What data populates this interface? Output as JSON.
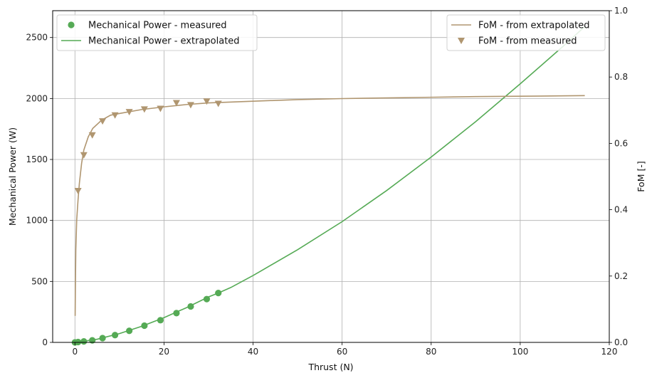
{
  "chart_data": {
    "type": "line",
    "xlabel": "Thrust (N)",
    "ylabel": "Mechanical Power (W)",
    "y2label": "FoM [-]",
    "xlim": [
      -5,
      120
    ],
    "ylim": [
      0,
      2720
    ],
    "y2lim": [
      0,
      1.0
    ],
    "xticks": [
      0,
      20,
      40,
      60,
      80,
      100,
      120
    ],
    "yticks": [
      0,
      500,
      1000,
      1500,
      2000,
      2500
    ],
    "y2ticks": [
      0.0,
      0.2,
      0.4,
      0.6,
      0.8,
      1.0
    ],
    "y2tick_labels": [
      "0.0",
      "0.2",
      "0.4",
      "0.6",
      "0.8",
      "1.0"
    ],
    "grid": true,
    "colors": {
      "power": "#55aa55",
      "fom": "#b09670"
    },
    "power_measured": {
      "name": "Mechanical Power - measured",
      "axis": "left",
      "marker": "circle",
      "x": [
        0.0,
        0.7,
        2.0,
        3.9,
        6.2,
        9.0,
        12.2,
        15.6,
        19.2,
        22.8,
        26.0,
        29.6,
        32.2
      ],
      "y": [
        0,
        3,
        8,
        17,
        35,
        60,
        95,
        137,
        182,
        240,
        295,
        355,
        405
      ]
    },
    "power_extrapolated": {
      "name": "Mechanical Power - extrapolated",
      "axis": "left",
      "x": [
        0,
        5,
        10,
        15,
        20,
        25,
        30,
        32.2,
        35,
        40,
        50,
        60,
        70,
        80,
        90,
        100,
        110,
        114.5
      ],
      "y": [
        0,
        26,
        72,
        132,
        203,
        284,
        373,
        405,
        450,
        548,
        760,
        990,
        1245,
        1520,
        1810,
        2120,
        2440,
        2590
      ]
    },
    "fom_extrapolated": {
      "name": "FoM - from extrapolated",
      "axis": "right",
      "x": [
        0.05,
        0.1,
        0.2,
        0.4,
        0.7,
        1.0,
        1.5,
        2.0,
        3.0,
        4.0,
        6.0,
        8.0,
        10.0,
        15.0,
        20.0,
        25.0,
        30.0,
        40.0,
        50.0,
        60.0,
        70.0,
        80.0,
        90.0,
        100.0,
        114.5
      ],
      "y": [
        0.08,
        0.16,
        0.28,
        0.37,
        0.43,
        0.48,
        0.54,
        0.58,
        0.62,
        0.645,
        0.67,
        0.685,
        0.69,
        0.702,
        0.71,
        0.717,
        0.722,
        0.727,
        0.732,
        0.735,
        0.737,
        0.739,
        0.741,
        0.742,
        0.744
      ]
    },
    "fom_measured": {
      "name": "FoM - from measured",
      "axis": "right",
      "marker": "triangle-down",
      "x": [
        0.7,
        2.0,
        3.9,
        6.2,
        9.0,
        12.2,
        15.6,
        19.2,
        22.8,
        26.0,
        29.6,
        32.2
      ],
      "y": [
        0.457,
        0.565,
        0.625,
        0.667,
        0.685,
        0.695,
        0.703,
        0.705,
        0.722,
        0.716,
        0.727,
        0.72
      ]
    },
    "legend_left": [
      "power_measured",
      "power_extrapolated"
    ],
    "legend_right": [
      "fom_extrapolated",
      "fom_measured"
    ],
    "legend_left_position": "top-left",
    "legend_right_position": "top-right"
  }
}
